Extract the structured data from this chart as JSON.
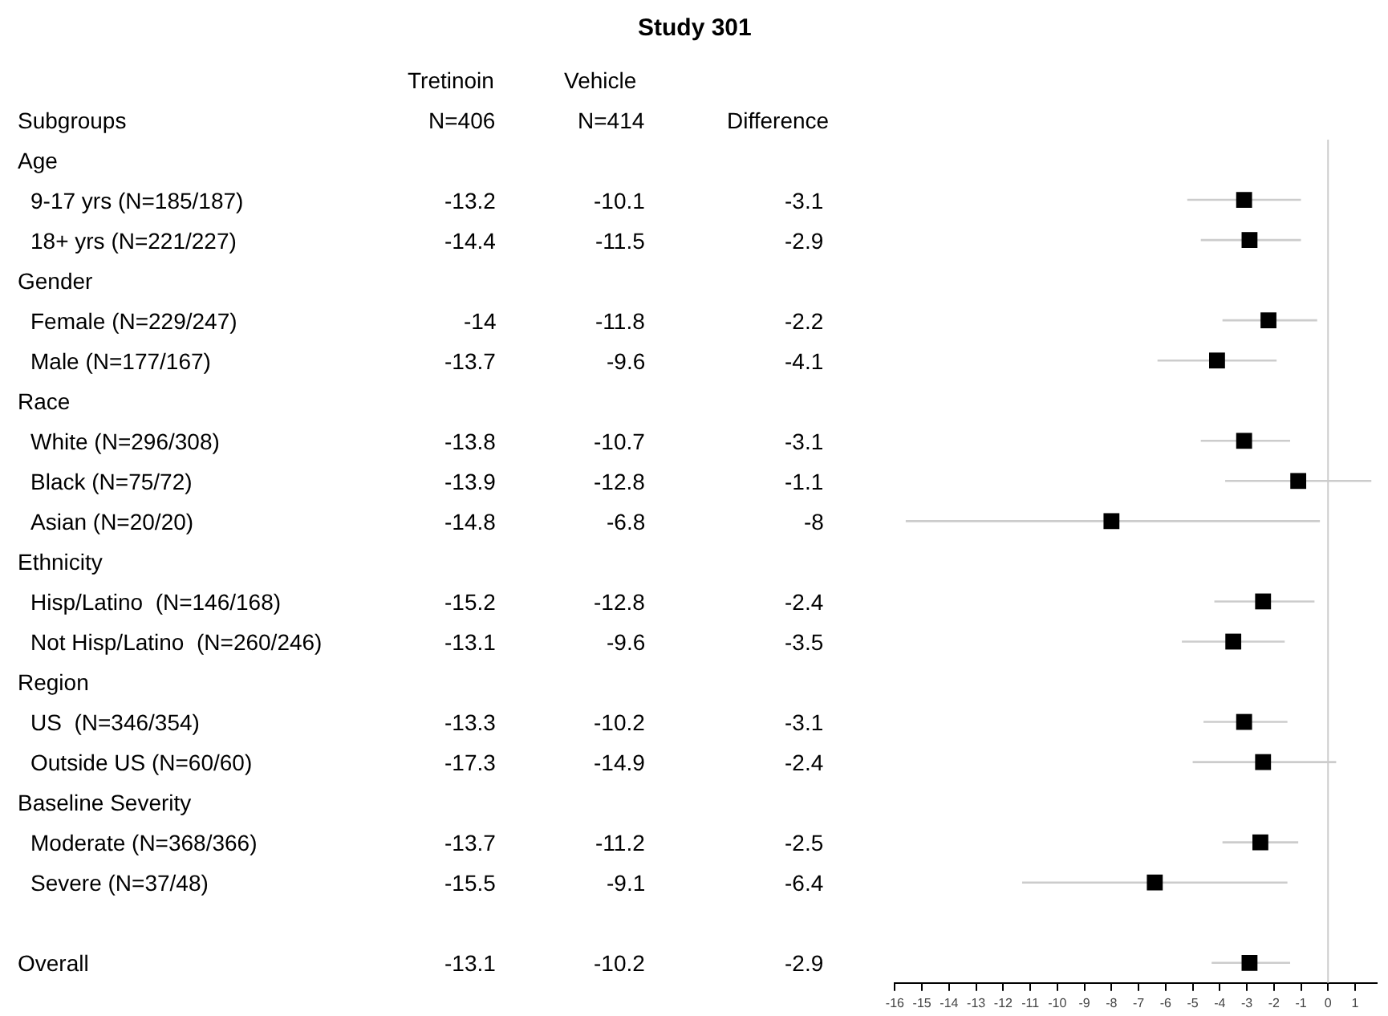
{
  "chart_data": [
    {
      "type": "other",
      "title": "Study 301",
      "annotations": [
        "Subgroups"
      ],
      "categories": [
        "Age",
        "9-17 yrs (N=185/187)",
        "18+ yrs (N=221/227)",
        "Gender",
        "Female (N=229/247)",
        "Male (N=177/167)",
        "Race",
        "White (N=296/308)",
        "Black (N=75/72)",
        "Asian (N=20/20)",
        "Ethnicity",
        "Hisp/Latino  (N=146/168)",
        "Not Hisp/Latino  (N=260/246)",
        "Region",
        "US  (N=346/354)",
        "Outside US (N=60/60)",
        "Baseline Severity",
        "Moderate (N=368/366)",
        "Severe (N=37/48)",
        null,
        "Overall"
      ],
      "series": [
        {
          "name": "Tretinoin\nN=406",
          "values": [
            null,
            -13.2,
            -14.4,
            null,
            -14,
            -13.7,
            null,
            -13.8,
            -13.9,
            -14.8,
            null,
            -15.2,
            -13.1,
            null,
            -13.3,
            -17.3,
            null,
            -13.7,
            -15.5,
            null,
            -13.1
          ]
        },
        {
          "name": "Vehicle\nN=414",
          "values": [
            null,
            -10.1,
            -11.5,
            null,
            -11.8,
            -9.6,
            null,
            -10.7,
            -12.8,
            -6.8,
            null,
            -12.8,
            -9.6,
            null,
            -10.2,
            -14.9,
            null,
            -11.2,
            -9.1,
            null,
            -10.2
          ]
        },
        {
          "name": "Difference",
          "values": [
            null,
            -3.1,
            -2.9,
            null,
            -2.2,
            -4.1,
            null,
            -3.1,
            -1.1,
            -8,
            null,
            -2.4,
            -3.5,
            null,
            -3.1,
            -2.4,
            null,
            -2.5,
            -6.4,
            null,
            -2.9
          ]
        }
      ],
      "data_labels": true
    },
    {
      "type": "scatter",
      "orientation": "horizontal",
      "categories": [
        null,
        null,
        null,
        null,
        null,
        null,
        null,
        null,
        null,
        null,
        null,
        null,
        null,
        null,
        null,
        null,
        null,
        null,
        null,
        null,
        null
      ],
      "values": [
        null,
        -3.1,
        -2.9,
        null,
        -2.2,
        -4.1,
        null,
        -3.1,
        -1.1,
        -8,
        null,
        -2.4,
        -3.5,
        null,
        -3.1,
        -2.4,
        null,
        -2.5,
        -6.4,
        null,
        -2.9
      ],
      "errors": [
        null,
        [
          -5.2,
          -1.0
        ],
        [
          -4.7,
          -1.0
        ],
        null,
        [
          -3.9,
          -0.4
        ],
        [
          -6.3,
          -1.9
        ],
        null,
        [
          -4.7,
          -1.4
        ],
        [
          -3.8,
          1.6
        ],
        [
          -15.6,
          -0.3
        ],
        null,
        [
          -4.2,
          -0.5
        ],
        [
          -5.4,
          -1.6
        ],
        null,
        [
          -4.6,
          -1.5
        ],
        [
          -5.0,
          0.3
        ],
        null,
        [
          -3.9,
          -1.1
        ],
        [
          -11.3,
          -1.5
        ],
        null,
        [
          -4.3,
          -1.4
        ]
      ],
      "color": "#000000",
      "marker": "square",
      "xlim": [
        -16,
        1.8
      ],
      "xticks": [
        -16,
        -15,
        -14,
        -13,
        -12,
        -11,
        -10,
        -9,
        -8,
        -7,
        -6,
        -5,
        -4,
        -3,
        -2,
        -1,
        0,
        1
      ],
      "ref_lines": [
        {
          "axis": "x",
          "value": 0,
          "color": "#cccccc"
        }
      ]
    }
  ]
}
